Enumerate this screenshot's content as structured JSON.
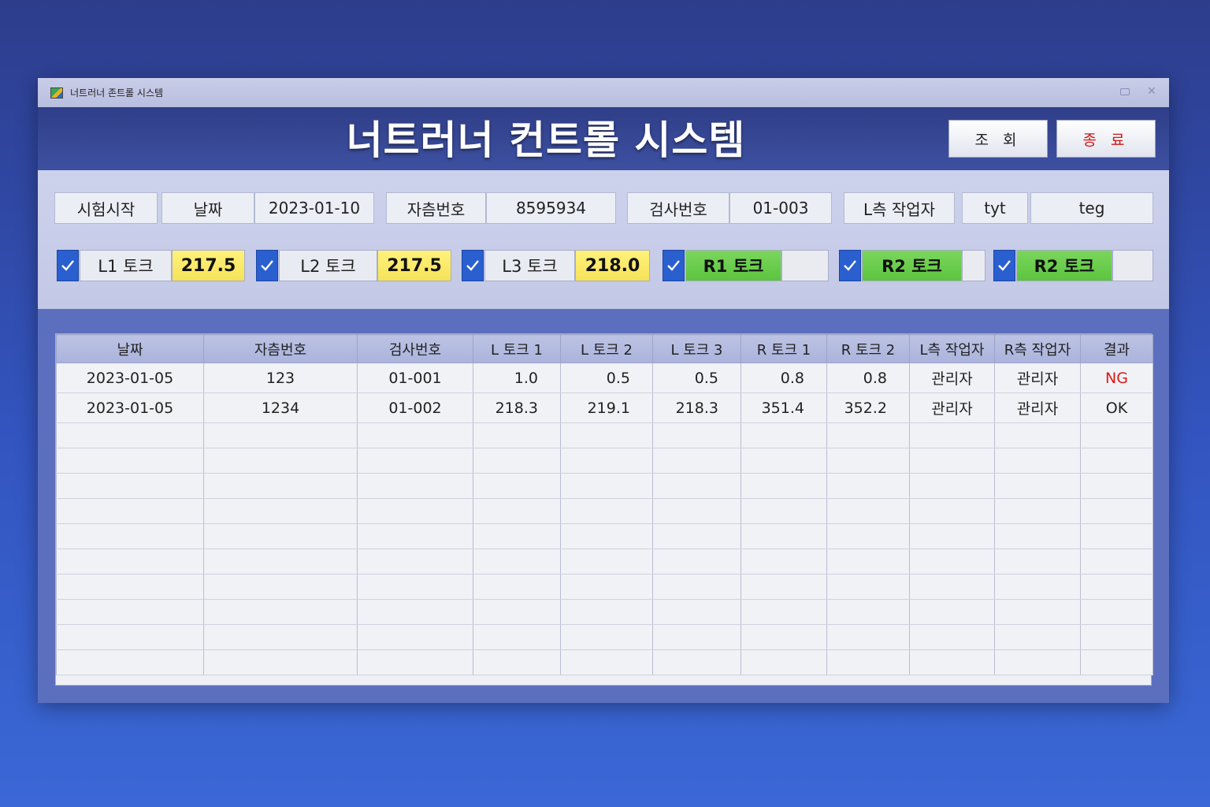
{
  "window": {
    "title": "너트러너 존트롤 시스템"
  },
  "header": {
    "title": "너트러너 컨트롤 시스템",
    "query_button": "조 회",
    "exit_button": "종 료"
  },
  "info_row": {
    "start_button": "시험시작",
    "date_label": "날짜",
    "date_value": "2023-01-10",
    "serial_label": "자츰번호",
    "serial_value": "8595934",
    "inspect_label": "검사번호",
    "inspect_value": "01-003",
    "l_worker_label": "L측 작업자",
    "l_worker_value": "tyt",
    "r_worker_value": "teg"
  },
  "torque_row": [
    {
      "label": "L1 토크",
      "value": "217.5",
      "checked": true
    },
    {
      "label": "L2 토크",
      "value": "217.5",
      "checked": true
    },
    {
      "label": "L3 토크",
      "value": "218.0",
      "checked": true
    },
    {
      "label": "R1 토크",
      "value": "",
      "checked": true
    },
    {
      "label": "R2 토크",
      "value": "",
      "checked": true
    },
    {
      "label": "R2 토크",
      "value": "",
      "checked": true
    }
  ],
  "table": {
    "columns": [
      "날짜",
      "자츰번호",
      "검사번호",
      "L 토크 1",
      "L 토크 2",
      "L 토크 3",
      "R 토크 1",
      "R 토크 2",
      "L측 작업자",
      "R측 작업자",
      "결과"
    ],
    "rows": [
      [
        "2023-01-05",
        "123",
        "01-001",
        "1.0",
        "0.5",
        "0.5",
        "0.8",
        "0.8",
        "관리자",
        "관리자",
        "NG"
      ],
      [
        "2023-01-05",
        "1234",
        "01-002",
        "218.3",
        "219.1",
        "218.3",
        "351.4",
        "352.2",
        "관리자",
        "관리자",
        "OK"
      ]
    ]
  },
  "colors": {
    "check_blue": "#2a5fd0",
    "value_yellow": "#f6e25a",
    "label_green": "#5cc43f",
    "ng_red": "#e01818"
  }
}
